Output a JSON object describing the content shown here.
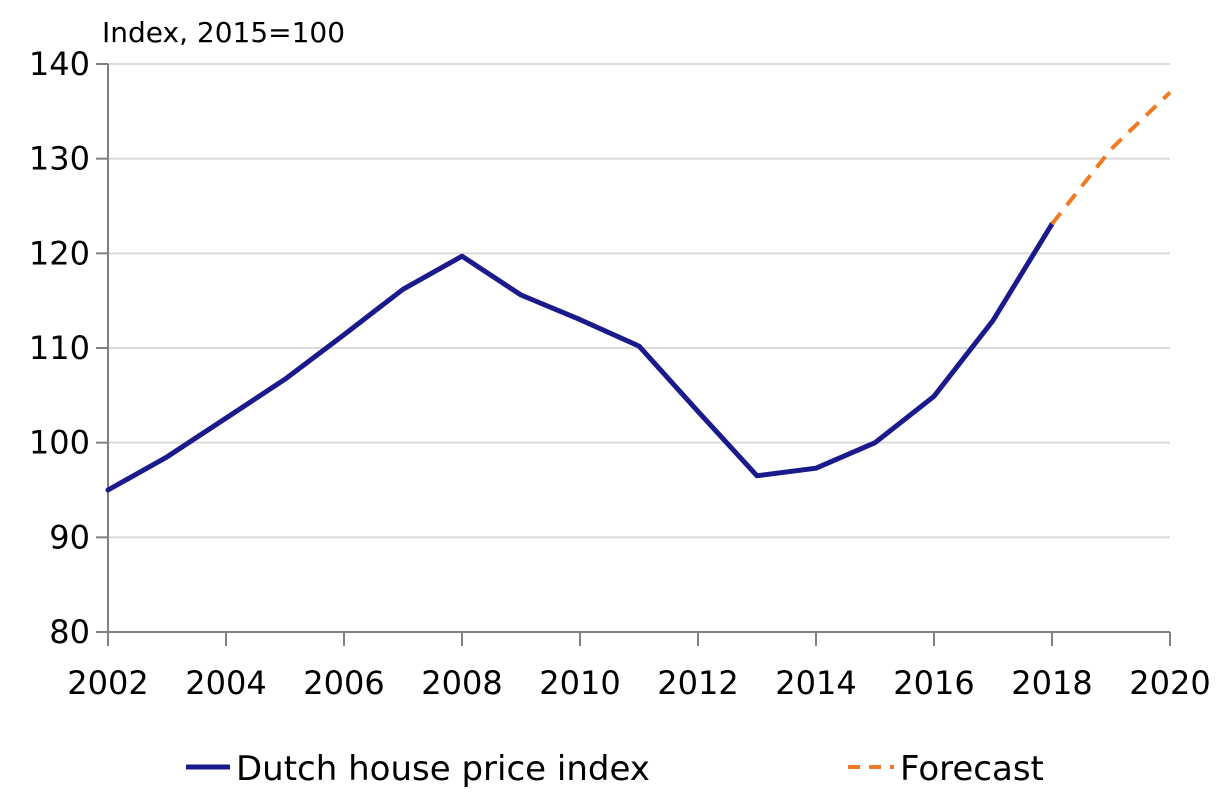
{
  "chart_data": {
    "type": "line",
    "title": "",
    "unit_label": "Index, 2015=100",
    "xlabel": "",
    "ylabel": "",
    "xlim": [
      2002,
      2020
    ],
    "ylim": [
      80,
      140
    ],
    "x_ticks": [
      "2002",
      "2004",
      "2006",
      "2008",
      "2010",
      "2012",
      "2014",
      "2016",
      "2018",
      "2020"
    ],
    "y_ticks": [
      "80",
      "90",
      "100",
      "110",
      "120",
      "130",
      "140"
    ],
    "grid": true,
    "legend_position": "bottom",
    "series": [
      {
        "name": "Dutch house price index",
        "color": "#1a1a8c",
        "style": "solid",
        "x": [
          2002,
          2003,
          2004,
          2005,
          2006,
          2007,
          2008,
          2009,
          2010,
          2011,
          2012,
          2013,
          2014,
          2015,
          2016,
          2017,
          2018
        ],
        "y": [
          95.0,
          98.5,
          102.6,
          106.7,
          111.4,
          116.2,
          119.7,
          115.6,
          113.0,
          110.2,
          103.3,
          96.5,
          97.3,
          100.0,
          104.9,
          112.9,
          123.1
        ]
      },
      {
        "name": "Forecast",
        "color": "#f07a22",
        "style": "dashed",
        "x": [
          2018,
          2019,
          2020
        ],
        "y": [
          123.1,
          131.0,
          137.0
        ]
      }
    ]
  }
}
